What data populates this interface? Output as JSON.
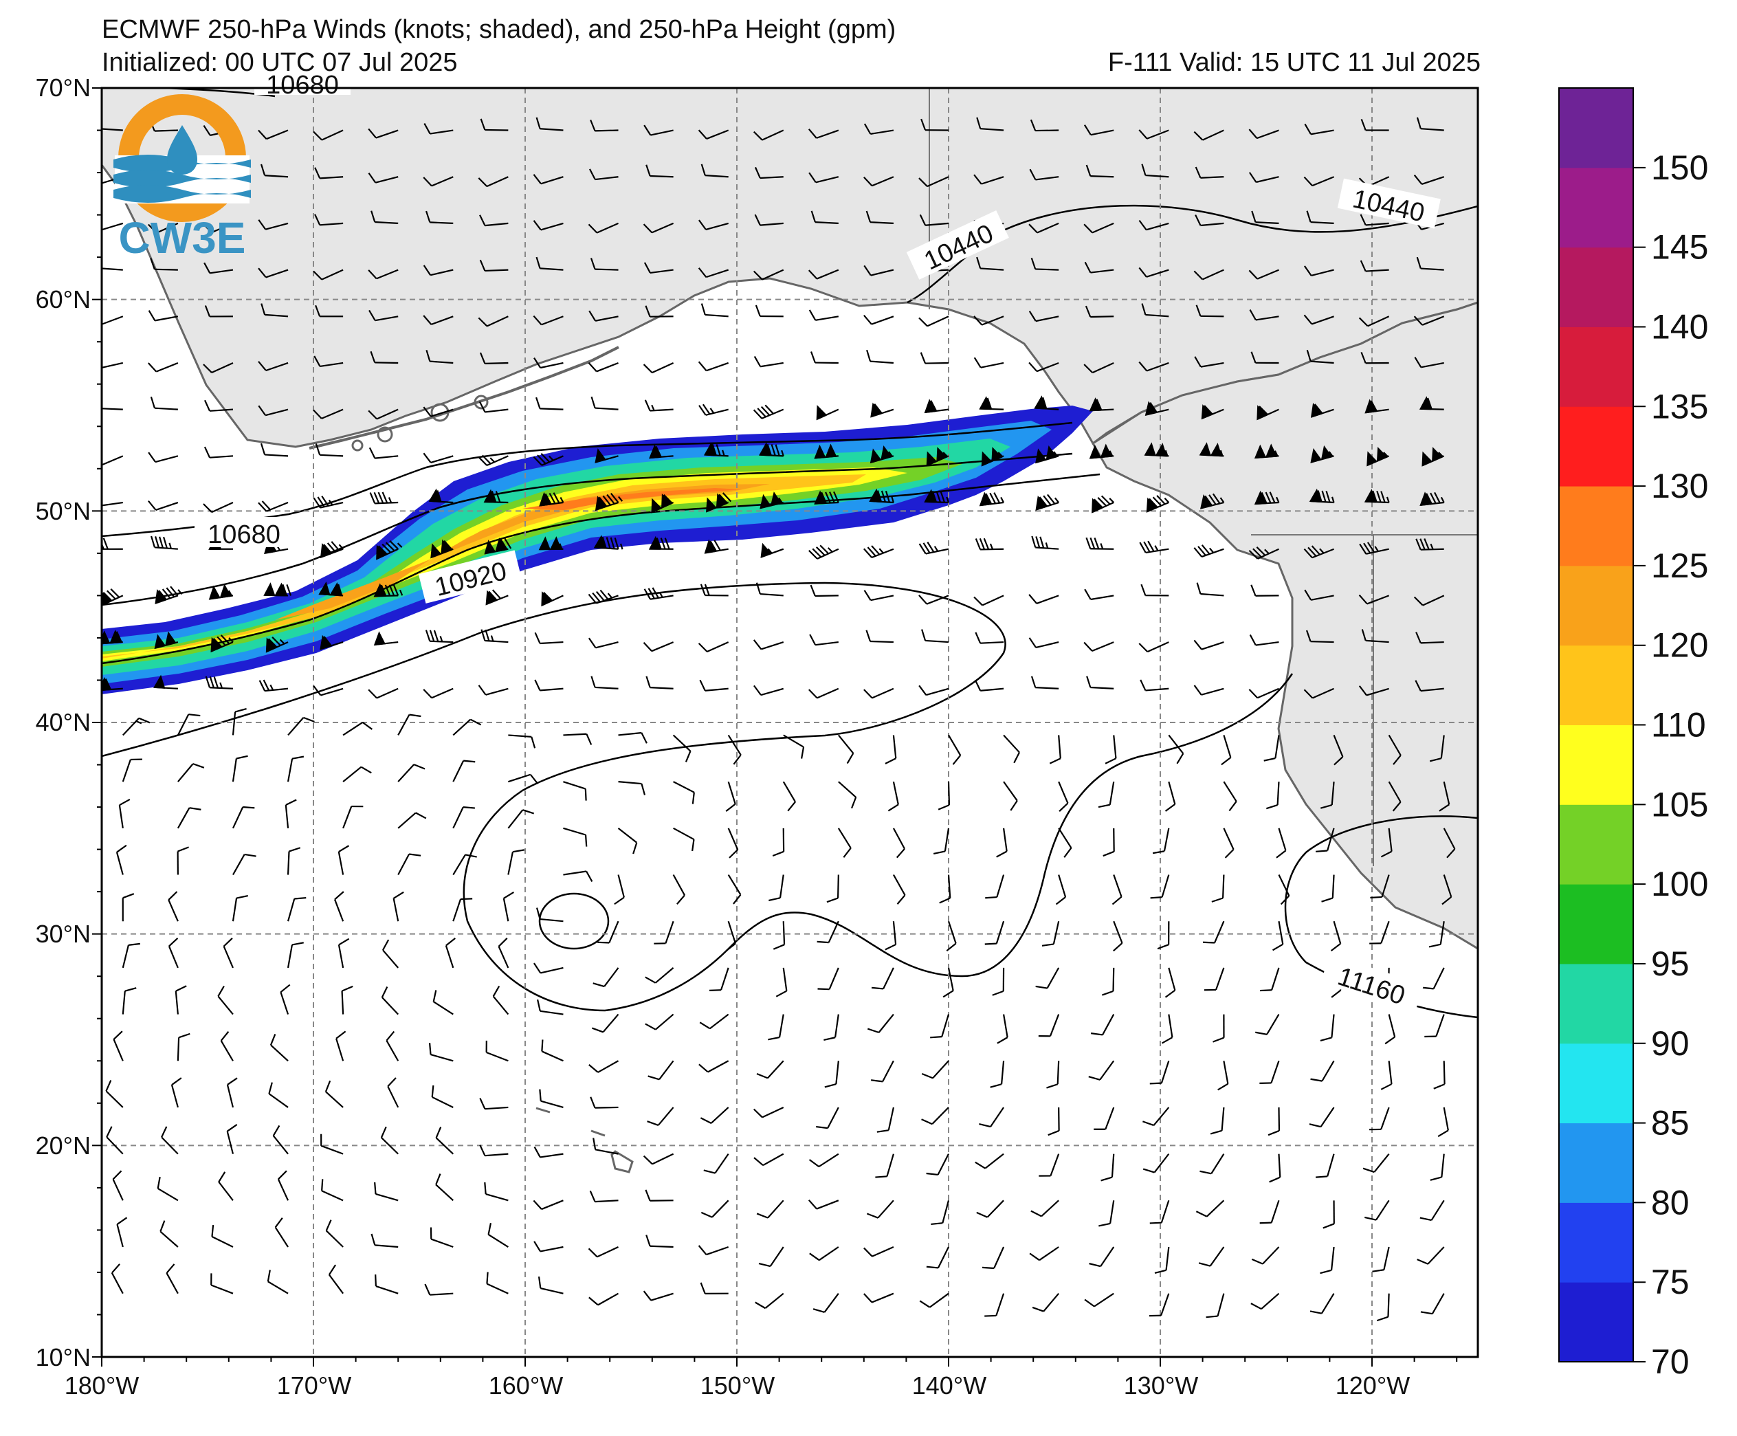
{
  "header": {
    "title": "ECMWF 250-hPa Winds (knots; shaded), and 250-hPa Height (gpm)",
    "initialized": "Initialized: 00 UTC 07 Jul 2025",
    "valid": "F-111  Valid: 15 UTC 11 Jul 2025"
  },
  "logo": {
    "text": "CW3E",
    "ring_color": "#F39A1E",
    "wave_color": "#2F8FBF",
    "text_color": "#3A94C4"
  },
  "map": {
    "ocean_color": "#FFFFFF",
    "land_color": "#E6E6E6",
    "lon_labels": [
      "180°W",
      "170°W",
      "160°W",
      "150°W",
      "140°W",
      "130°W",
      "120°W"
    ],
    "lat_labels": [
      "70°N",
      "60°N",
      "50°N",
      "40°N",
      "30°N",
      "20°N",
      "10°N"
    ],
    "contour_labels": [
      "10680",
      "10440",
      "10440",
      "10680",
      "10920",
      "11160"
    ]
  },
  "colorbar": {
    "colors": [
      "#1E1ED2",
      "#2241F0",
      "#2296F0",
      "#23E5F0",
      "#22D7A4",
      "#1CBE22",
      "#74D127",
      "#FFFF1E",
      "#FFC41A",
      "#F9A21A",
      "#FF7C1C",
      "#FF1E1E",
      "#D71C3C",
      "#B5195F",
      "#9C1C8A",
      "#6E2396"
    ],
    "tick_labels": [
      "70",
      "75",
      "80",
      "85",
      "90",
      "95",
      "100",
      "105",
      "110",
      "120",
      "125",
      "130",
      "135",
      "140",
      "145",
      "150"
    ],
    "ticks": [
      70,
      75,
      80,
      85,
      90,
      95,
      100,
      105,
      110,
      120,
      125,
      130,
      135,
      140,
      145,
      150
    ]
  }
}
